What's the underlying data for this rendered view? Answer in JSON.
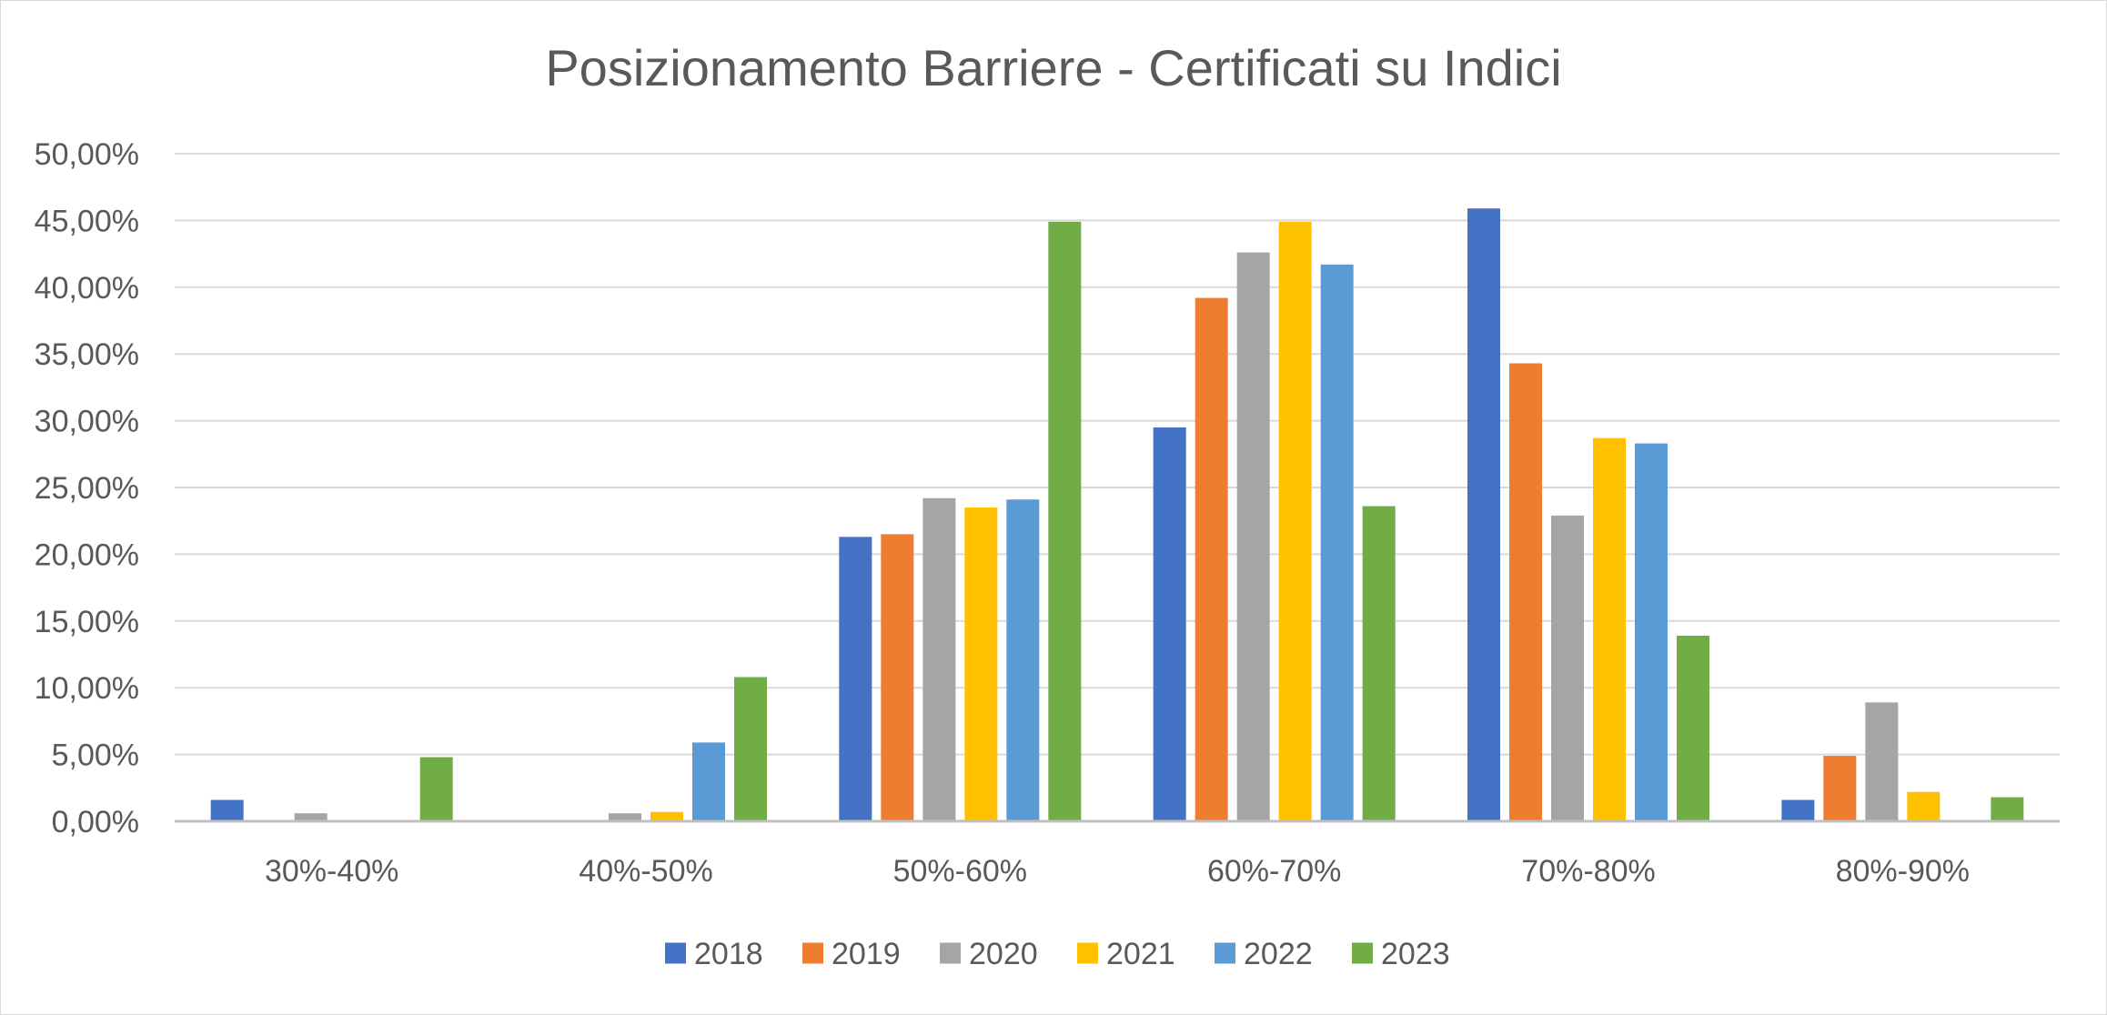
{
  "chart_data": {
    "type": "bar",
    "title": "Posizionamento Barriere - Certificati su Indici",
    "xlabel": "",
    "ylabel": "",
    "ylim": [
      0,
      50
    ],
    "y_ticks": [
      "0,00%",
      "5,00%",
      "10,00%",
      "15,00%",
      "20,00%",
      "25,00%",
      "30,00%",
      "35,00%",
      "40,00%",
      "45,00%",
      "50,00%"
    ],
    "grid": true,
    "legend_position": "bottom",
    "categories": [
      "30%-40%",
      "40%-50%",
      "50%-60%",
      "60%-70%",
      "70%-80%",
      "80%-90%"
    ],
    "series": [
      {
        "name": "2018",
        "color": "#4472C4",
        "values": [
          1.6,
          0,
          21.3,
          29.5,
          45.9,
          1.6
        ]
      },
      {
        "name": "2019",
        "color": "#ED7D31",
        "values": [
          0,
          0,
          21.5,
          39.2,
          34.3,
          4.9
        ]
      },
      {
        "name": "2020",
        "color": "#A5A5A5",
        "values": [
          0.6,
          0.6,
          24.2,
          42.6,
          22.9,
          8.9
        ]
      },
      {
        "name": "2021",
        "color": "#FFC000",
        "values": [
          0,
          0.7,
          23.5,
          44.9,
          28.7,
          2.2
        ]
      },
      {
        "name": "2022",
        "color": "#5B9BD5",
        "values": [
          0,
          5.9,
          24.1,
          41.7,
          28.3,
          0
        ]
      },
      {
        "name": "2023",
        "color": "#70AD47",
        "values": [
          4.8,
          10.8,
          44.9,
          23.6,
          13.9,
          1.8
        ]
      }
    ]
  }
}
